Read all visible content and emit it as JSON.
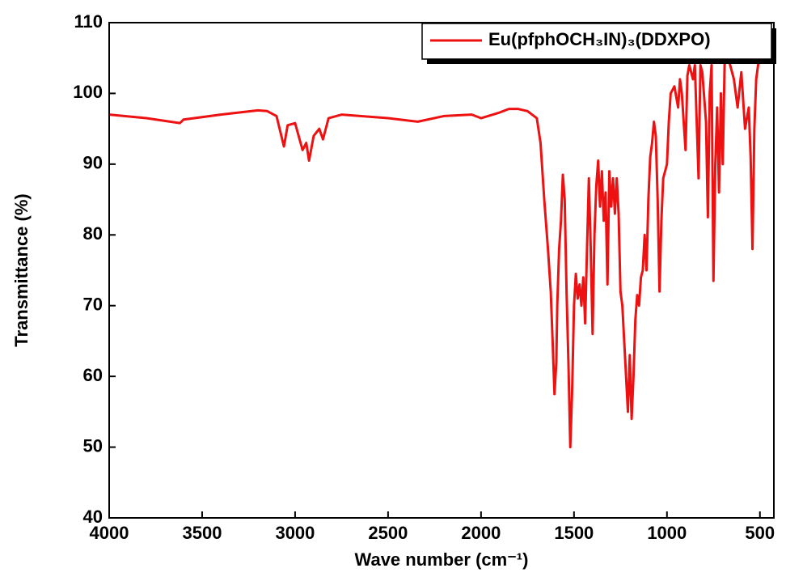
{
  "chart_data": {
    "type": "line",
    "x_label": "Wave number (cm⁻¹)",
    "y_label": "Transmittance (%)",
    "xlim": [
      4000,
      425
    ],
    "xticks": [
      4000,
      3500,
      3000,
      2500,
      2000,
      1500,
      1000,
      500
    ],
    "ylim": [
      40,
      110
    ],
    "yticks": [
      40,
      50,
      60,
      70,
      80,
      90,
      100,
      110
    ],
    "legend": "top-right",
    "x": [
      4000,
      3800,
      3620,
      3600,
      3400,
      3200,
      3150,
      3100,
      3060,
      3040,
      3000,
      2960,
      2940,
      2925,
      2900,
      2870,
      2850,
      2820,
      2750,
      2500,
      2340,
      2200,
      2050,
      2000,
      1900,
      1850,
      1800,
      1750,
      1700,
      1680,
      1660,
      1640,
      1625,
      1615,
      1605,
      1595,
      1590,
      1580,
      1570,
      1560,
      1550,
      1540,
      1530,
      1520,
      1510,
      1500,
      1490,
      1480,
      1470,
      1460,
      1450,
      1440,
      1430,
      1420,
      1410,
      1400,
      1390,
      1380,
      1370,
      1360,
      1350,
      1340,
      1330,
      1320,
      1310,
      1300,
      1290,
      1280,
      1270,
      1260,
      1250,
      1240,
      1230,
      1220,
      1210,
      1200,
      1190,
      1180,
      1170,
      1160,
      1150,
      1140,
      1130,
      1120,
      1110,
      1100,
      1090,
      1080,
      1070,
      1060,
      1050,
      1040,
      1030,
      1020,
      1000,
      990,
      980,
      960,
      940,
      930,
      920,
      900,
      890,
      880,
      860,
      850,
      830,
      820,
      810,
      790,
      780,
      770,
      760,
      750,
      740,
      730,
      720,
      710,
      700,
      690,
      680,
      660,
      640,
      620,
      600,
      580,
      560,
      550,
      540,
      530,
      520,
      510,
      500,
      480,
      460,
      450
    ],
    "series": [
      {
        "name": "Eu(pfphOCH₃IN)₃(DDXPO)",
        "color": "#ee1111",
        "values": [
          97,
          96.5,
          95.8,
          96.3,
          97,
          97.6,
          97.5,
          96.8,
          92.5,
          95.5,
          95.8,
          92,
          93,
          90.5,
          94,
          95,
          93.5,
          96.5,
          97,
          96.5,
          96,
          96.8,
          97,
          96.5,
          97.3,
          97.8,
          97.8,
          97.5,
          96.5,
          93,
          85,
          78,
          72,
          65,
          57.5,
          62,
          70,
          78,
          82,
          88.5,
          85,
          72,
          62,
          50,
          58,
          70,
          74.5,
          71,
          73,
          70,
          74,
          67.5,
          78,
          88,
          78,
          66,
          80,
          87,
          90.5,
          84,
          89,
          82,
          86,
          73,
          89,
          84,
          88,
          83,
          88,
          83,
          72,
          70,
          65,
          60,
          55,
          63,
          54,
          60,
          68,
          71.5,
          70,
          74,
          75,
          80,
          75,
          85,
          91,
          93,
          96,
          94,
          85,
          72,
          82,
          88,
          90,
          96,
          100,
          101,
          98,
          102,
          100,
          92,
          102.5,
          104,
          102,
          104,
          88,
          104,
          103,
          96,
          82.5,
          100,
          104,
          73.5,
          90,
          98,
          86,
          100,
          90,
          104,
          106,
          104,
          102,
          98,
          103,
          95,
          98,
          91,
          78,
          95,
          102,
          104,
          105,
          108,
          109,
          110
        ]
      }
    ]
  }
}
